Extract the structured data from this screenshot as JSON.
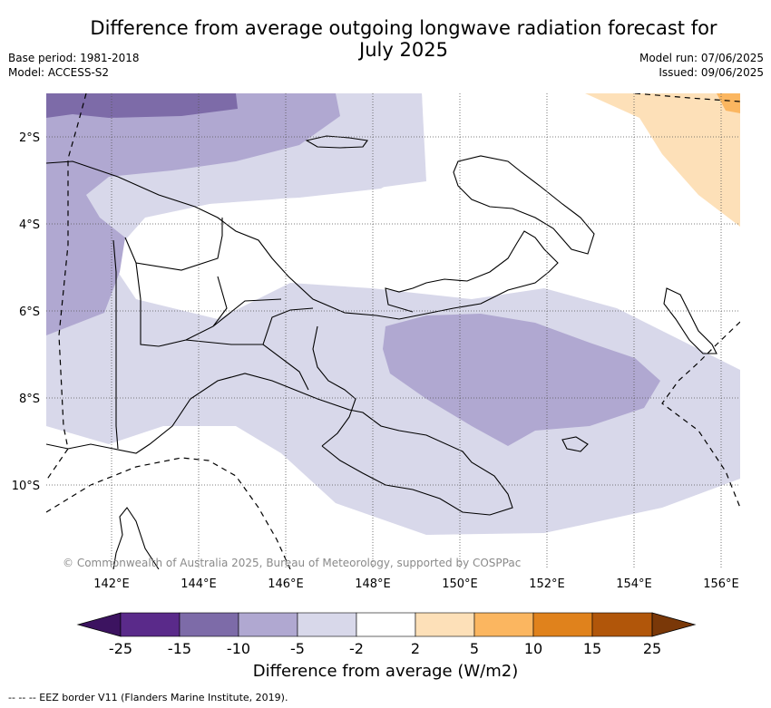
{
  "header": {
    "title_line1": "Difference from average outgoing longwave radiation forecast for",
    "title_line2": "July 2025",
    "base_period": "Base period: 1981-2018",
    "model": "Model: ACCESS-S2",
    "model_run": "Model run: 07/06/2025",
    "issued": "Issued: 09/06/2025"
  },
  "map": {
    "lat_labels": [
      "2°S",
      "4°S",
      "6°S",
      "8°S",
      "10°S"
    ],
    "lon_labels": [
      "142°E",
      "144°E",
      "146°E",
      "148°E",
      "150°E",
      "152°E",
      "154°E",
      "156°E"
    ],
    "credit": "© Commonwealth of Australia 2025, Bureau of Meteorology, supported by COSPPac",
    "grid": true
  },
  "legend": {
    "title": "Difference from average (W/m2)",
    "ticks": [
      "-25",
      "-15",
      "-10",
      "-5",
      "-2",
      "2",
      "5",
      "10",
      "15",
      "25"
    ],
    "colors": [
      "#3c1360",
      "#5a2a8a",
      "#7d6ba8",
      "#b0a8d1",
      "#d8d8ea",
      "#ffffff",
      "#fde0b8",
      "#fbb660",
      "#e0821c",
      "#b1560a",
      "#7a3808"
    ]
  },
  "footer": {
    "eez_note": "-- -- -- EEZ border V11 (Flanders Marine Institute, 2019)."
  }
}
